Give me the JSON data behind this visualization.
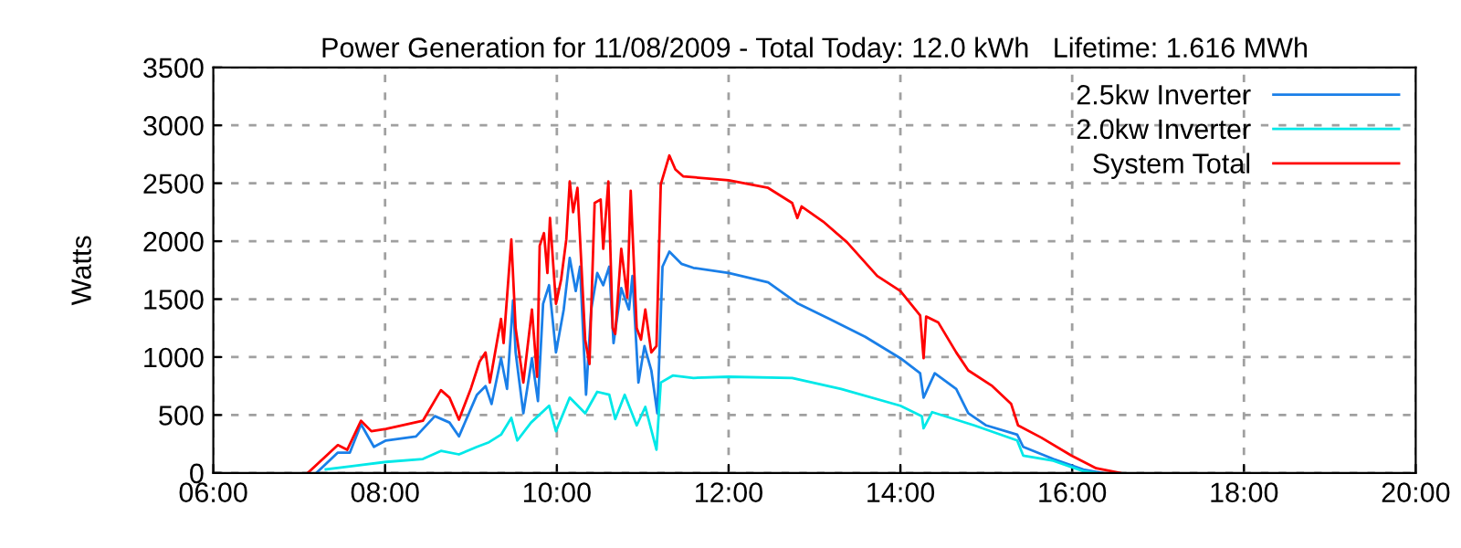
{
  "chart_data": {
    "type": "line",
    "title": "Power Generation for 11/08/2009 - Total Today: 12.0 kWh   Lifetime: 1.616 MWh",
    "ylabel": "Watts",
    "xlim": [
      6,
      20
    ],
    "ylim": [
      0,
      3500
    ],
    "xticks": [
      {
        "value": 6,
        "label": "06:00"
      },
      {
        "value": 8,
        "label": "08:00"
      },
      {
        "value": 10,
        "label": "10:00"
      },
      {
        "value": 12,
        "label": "12:00"
      },
      {
        "value": 14,
        "label": "14:00"
      },
      {
        "value": 16,
        "label": "16:00"
      },
      {
        "value": 18,
        "label": "18:00"
      },
      {
        "value": 20,
        "label": "20:00"
      }
    ],
    "yticks": [
      0,
      500,
      1000,
      1500,
      2000,
      2500,
      3000,
      3500
    ],
    "grid": true,
    "legend": "top right",
    "line_style": "solid",
    "marker": "none",
    "series": [
      {
        "name": "2.5kw Inverter",
        "color": "#1a7fe8",
        "x": [
          7.2,
          7.45,
          7.59,
          7.72,
          7.87,
          8.01,
          8.36,
          8.58,
          8.75,
          8.86,
          9.07,
          9.17,
          9.24,
          9.35,
          9.42,
          9.49,
          9.52,
          9.61,
          9.71,
          9.78,
          9.84,
          9.91,
          9.99,
          10.08,
          10.15,
          10.22,
          10.27,
          10.34,
          10.4,
          10.47,
          10.54,
          10.61,
          10.66,
          10.75,
          10.84,
          10.88,
          10.95,
          11.02,
          11.1,
          11.17,
          11.23,
          11.31,
          11.45,
          11.59,
          12.0,
          12.46,
          12.81,
          13.17,
          13.59,
          14.0,
          14.23,
          14.27,
          14.4,
          14.65,
          14.79,
          15.0,
          15.36,
          15.43,
          15.78,
          16.13,
          16.35
        ],
        "values": [
          0,
          175,
          175,
          420,
          225,
          280,
          315,
          490,
          435,
          315,
          675,
          750,
          595,
          990,
          725,
          1490,
          1040,
          515,
          990,
          620,
          1460,
          1620,
          1040,
          1410,
          1855,
          1570,
          1780,
          675,
          1410,
          1725,
          1620,
          1780,
          1120,
          1595,
          1410,
          1700,
          780,
          1095,
          885,
          515,
          1780,
          1910,
          1805,
          1770,
          1725,
          1645,
          1460,
          1330,
          1175,
          990,
          860,
          650,
          860,
          725,
          515,
          410,
          330,
          225,
          120,
          30,
          0
        ]
      },
      {
        "name": "2.0kw Inverter",
        "color": "#00e8e8",
        "x": [
          7.31,
          8.01,
          8.44,
          8.65,
          8.86,
          9.07,
          9.21,
          9.35,
          9.47,
          9.54,
          9.7,
          9.91,
          9.99,
          10.15,
          10.33,
          10.47,
          10.61,
          10.68,
          10.79,
          10.93,
          11.03,
          11.16,
          11.21,
          11.35,
          11.59,
          12.0,
          12.74,
          13.31,
          14.0,
          14.25,
          14.27,
          14.37,
          14.86,
          15.36,
          15.43,
          15.78,
          16.13,
          16.28
        ],
        "values": [
          30,
          95,
          120,
          190,
          160,
          225,
          265,
          330,
          475,
          280,
          435,
          580,
          360,
          650,
          515,
          700,
          675,
          465,
          675,
          410,
          570,
          200,
          780,
          840,
          820,
          830,
          820,
          725,
          580,
          490,
          385,
          525,
          410,
          280,
          150,
          105,
          15,
          0
        ]
      },
      {
        "name": "System Total",
        "color": "#ff0000",
        "x": [
          7.1,
          7.45,
          7.56,
          7.72,
          7.84,
          8.01,
          8.19,
          8.44,
          8.65,
          8.75,
          8.86,
          9.0,
          9.1,
          9.17,
          9.22,
          9.35,
          9.38,
          9.47,
          9.52,
          9.61,
          9.71,
          9.77,
          9.8,
          9.85,
          9.89,
          9.92,
          9.99,
          10.05,
          10.11,
          10.15,
          10.19,
          10.24,
          10.33,
          10.38,
          10.44,
          10.51,
          10.54,
          10.6,
          10.65,
          10.68,
          10.75,
          10.82,
          10.86,
          10.93,
          10.98,
          11.03,
          11.1,
          11.16,
          11.21,
          11.31,
          11.38,
          11.47,
          12.0,
          12.46,
          12.74,
          12.8,
          12.85,
          13.1,
          13.38,
          13.73,
          14.0,
          14.23,
          14.27,
          14.3,
          14.44,
          14.65,
          14.79,
          15.07,
          15.29,
          15.37,
          15.64,
          15.99,
          16.28,
          16.56
        ],
        "values": [
          0,
          240,
          200,
          450,
          360,
          380,
          410,
          450,
          715,
          650,
          460,
          730,
          960,
          1040,
          780,
          1330,
          1120,
          2015,
          1250,
          780,
          1410,
          830,
          1960,
          2070,
          1725,
          2200,
          1460,
          1670,
          2015,
          2515,
          2250,
          2460,
          1150,
          940,
          2330,
          2360,
          1935,
          2515,
          1250,
          1200,
          1935,
          1515,
          2435,
          1250,
          1150,
          1410,
          1040,
          1095,
          2490,
          2740,
          2620,
          2560,
          2525,
          2460,
          2330,
          2200,
          2300,
          2170,
          1990,
          1700,
          1570,
          1360,
          990,
          1350,
          1300,
          1040,
          885,
          750,
          595,
          410,
          305,
          150,
          40,
          0
        ]
      }
    ]
  }
}
